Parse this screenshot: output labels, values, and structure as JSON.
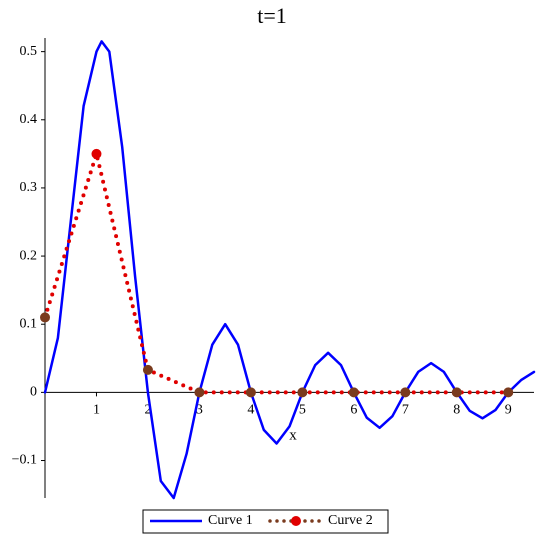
{
  "chart_data": {
    "type": "line",
    "title": "t=1",
    "x_label": "x",
    "xlim": [
      0,
      9.5
    ],
    "xticks": [
      1,
      2,
      3,
      4,
      5,
      6,
      7,
      8,
      9
    ],
    "ylim": [
      -0.155,
      0.52
    ],
    "yticks": [
      {
        "value": -0.1,
        "label": "−0.1"
      },
      0,
      0.1,
      0.2,
      0.3,
      0.4,
      0.5
    ],
    "series": [
      {
        "name": "Curve 1",
        "color": "#0000ff",
        "style": "solid",
        "x": [
          0,
          0.25,
          0.5,
          0.75,
          1,
          1.1,
          1.25,
          1.5,
          1.75,
          2,
          2.25,
          2.5,
          2.75,
          3,
          3.25,
          3.5,
          3.75,
          4,
          4.25,
          4.5,
          4.75,
          5,
          5.25,
          5.5,
          5.75,
          6,
          6.25,
          6.5,
          6.75,
          7,
          7.25,
          7.5,
          7.75,
          8,
          8.25,
          8.5,
          8.75,
          9,
          9.25,
          9.5
        ],
        "values": [
          0,
          0.08,
          0.25,
          0.42,
          0.5,
          0.515,
          0.5,
          0.36,
          0.17,
          0,
          -0.13,
          -0.155,
          -0.09,
          0,
          0.07,
          0.1,
          0.07,
          0,
          -0.055,
          -0.075,
          -0.05,
          0,
          0.04,
          0.058,
          0.04,
          0,
          -0.037,
          -0.052,
          -0.035,
          0,
          0.03,
          0.043,
          0.03,
          0,
          -0.027,
          -0.038,
          -0.026,
          0,
          0.018,
          0.03
        ]
      },
      {
        "name": "Curve 2",
        "color": "#e00000",
        "marker_color": "#7a3b1e",
        "style": "dotted",
        "x": [
          0,
          1,
          2,
          3,
          4,
          5,
          6,
          7,
          8,
          9
        ],
        "values": [
          0.11,
          0.35,
          0.033,
          0,
          0,
          0,
          0,
          0,
          0,
          0
        ]
      }
    ]
  }
}
